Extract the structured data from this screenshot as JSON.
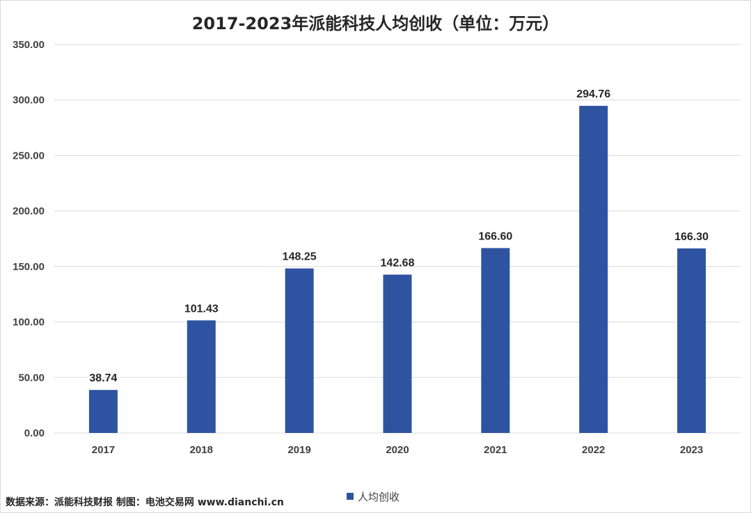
{
  "source_note": "数据来源：派能科技财报  制图：电池交易网 www.dianchi.cn",
  "colors": {
    "bar": "#2e53a1",
    "grid": "#d9d9d9",
    "text": "#404040"
  },
  "chart_data": {
    "type": "bar",
    "title": "2017-2023年派能科技人均创收（单位：万元）",
    "categories": [
      "2017",
      "2018",
      "2019",
      "2020",
      "2021",
      "2022",
      "2023"
    ],
    "series": [
      {
        "name": "人均创收",
        "values": [
          38.74,
          101.43,
          148.25,
          142.68,
          166.6,
          294.76,
          166.3
        ],
        "value_labels": [
          "38.74",
          "101.43",
          "148.25",
          "142.68",
          "166.60",
          "294.76",
          "166.30"
        ]
      }
    ],
    "ylim": [
      0,
      350
    ],
    "yticks": [
      "0.00",
      "50.00",
      "100.00",
      "150.00",
      "200.00",
      "250.00",
      "300.00",
      "350.00"
    ],
    "xlabel": "",
    "ylabel": "",
    "grid": true,
    "legend": "bottom"
  }
}
